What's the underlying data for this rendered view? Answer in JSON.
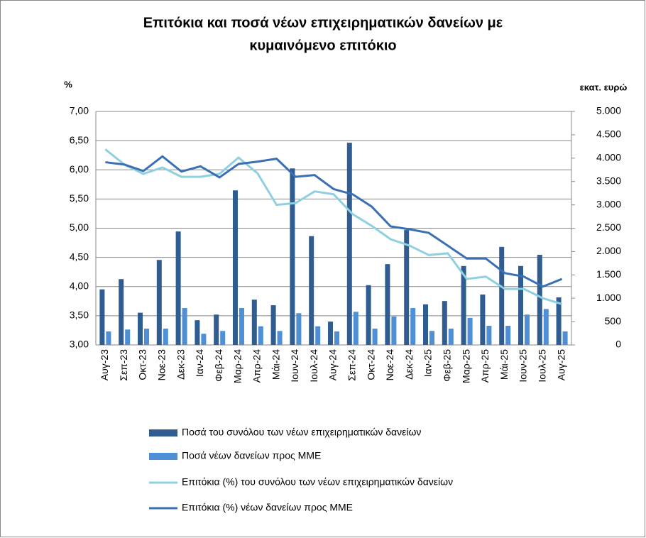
{
  "chart_data": {
    "type": "combo",
    "title": [
      "Επιτόκια και ποσά νέων επιχειρηματικών δανείων με",
      "κυμαινόμενο επιτόκιο"
    ],
    "y_label": "%",
    "y2_label": "εκατ. ευρώ",
    "categories": [
      "Αυγ-23",
      "Σεπ-23",
      "Οκτ-23",
      "Νοε-23",
      "Δεκ-23",
      "Ιαν-24",
      "Φεβ-24",
      "Μαρ-24",
      "Απρ-24",
      "Μάι-24",
      "Ιουν-24",
      "Ιουλ-24",
      "Αυγ-24",
      "Σεπ-24",
      "Οκτ-24",
      "Νοε-24",
      "Δεκ-24",
      "Ιαν-25",
      "Φεβ-25",
      "Μαρ-25",
      "Απρ-25",
      "Μάι-25",
      "Ιουν-25",
      "Ιουλ-25",
      "Αυγ-25"
    ],
    "series": [
      {
        "name": "Ποσά του συνόλου των νέων επιχειρηματικών δανείων",
        "type": "bar",
        "axis": "y2",
        "color": "#2f5d92",
        "values": [
          1190,
          1410,
          690,
          1820,
          2430,
          530,
          650,
          3310,
          970,
          850,
          3780,
          2330,
          500,
          4330,
          1280,
          1730,
          2460,
          870,
          940,
          1690,
          1080,
          2100,
          1690,
          1930,
          1020
        ]
      },
      {
        "name": "Ποσά νέων δανείων προς ΜΜΕ",
        "type": "bar",
        "axis": "y2",
        "color": "#4f8fd6",
        "values": [
          290,
          330,
          350,
          350,
          790,
          240,
          300,
          790,
          400,
          300,
          680,
          400,
          290,
          710,
          350,
          610,
          790,
          300,
          350,
          580,
          410,
          410,
          650,
          770,
          290
        ]
      },
      {
        "name": "Επιτόκια (%) του συνόλου των νέων επιχειρηματικών δανείων",
        "type": "line",
        "axis": "y",
        "color": "#8ecfe0",
        "values": [
          6.35,
          6.09,
          5.93,
          6.04,
          5.88,
          5.88,
          5.93,
          6.21,
          5.94,
          5.4,
          5.43,
          5.63,
          5.58,
          5.24,
          5.04,
          4.81,
          4.7,
          4.54,
          4.57,
          4.13,
          4.17,
          3.96,
          3.96,
          3.8,
          3.7
        ]
      },
      {
        "name": "Επιτόκια (%) νέων δανείων προς ΜΜΕ",
        "type": "line",
        "axis": "y",
        "color": "#3b6fb5",
        "values": [
          6.13,
          6.09,
          5.98,
          6.23,
          5.97,
          6.06,
          5.87,
          6.1,
          6.14,
          6.19,
          5.88,
          5.91,
          5.67,
          5.58,
          5.37,
          5.03,
          4.98,
          4.92,
          4.7,
          4.48,
          4.48,
          4.23,
          4.17,
          4.0,
          4.13
        ]
      }
    ],
    "ylim": [
      3,
      7
    ],
    "yticks": [
      {
        "value": 3,
        "label": "3,00"
      },
      {
        "value": 3.5,
        "label": "3,50"
      },
      {
        "value": 4,
        "label": "4,00"
      },
      {
        "value": 4.5,
        "label": "4,50"
      },
      {
        "value": 5,
        "label": "5,00"
      },
      {
        "value": 5.5,
        "label": "5,50"
      },
      {
        "value": 6,
        "label": "6,00"
      },
      {
        "value": 6.5,
        "label": "6,50"
      },
      {
        "value": 7,
        "label": "7,00"
      }
    ],
    "y2lim": [
      0,
      5000
    ],
    "y2ticks": [
      0,
      500,
      {
        "value": 1000,
        "label": "1.000"
      },
      {
        "value": 1500,
        "label": "1.500"
      },
      {
        "value": 2000,
        "label": "2.000"
      },
      {
        "value": 2500,
        "label": "2.500"
      },
      {
        "value": 3000,
        "label": "3.000"
      },
      {
        "value": 3500,
        "label": "3.500"
      },
      {
        "value": 4000,
        "label": "4.000"
      },
      {
        "value": 4500,
        "label": "4.500"
      },
      {
        "value": 5000,
        "label": "5.000"
      }
    ],
    "grid": true
  }
}
